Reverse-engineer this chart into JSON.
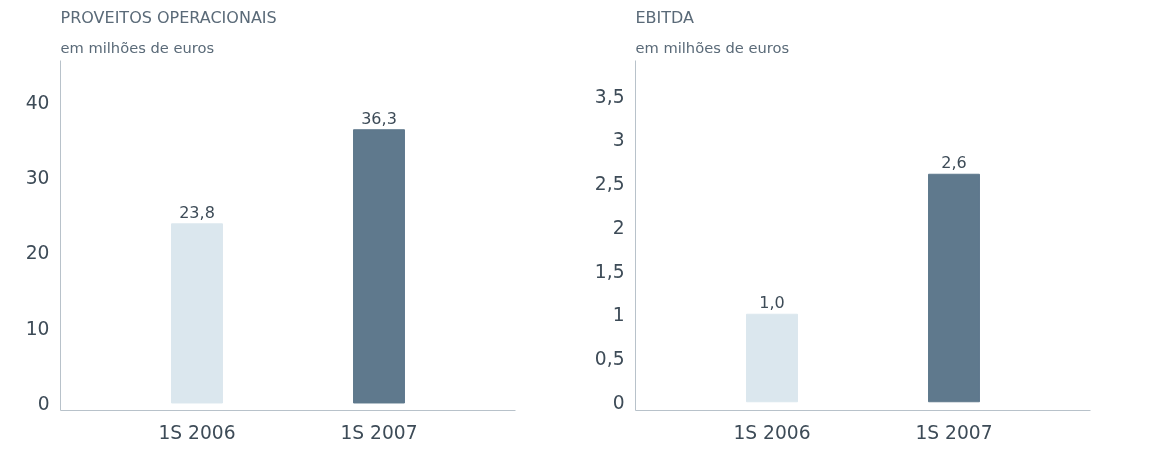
{
  "chart_data": [
    {
      "type": "bar",
      "title": "PROVEITOS OPERACIONAIS",
      "subtitle": "em milhões de euros",
      "categories": [
        "1S 2006",
        "1S 2007"
      ],
      "values": [
        23.8,
        36.3
      ],
      "colors": [
        "#dbe7ee",
        "#5f798d"
      ],
      "value_labels": [
        "23,8",
        "36,3"
      ],
      "ylim": [
        -1,
        45.5
      ],
      "yticks": [
        0,
        10,
        20,
        30,
        40
      ],
      "grid": false,
      "legend": false
    },
    {
      "type": "bar",
      "title": "EBITDA",
      "subtitle": "em milhões de euros",
      "categories": [
        "1S 2006",
        "1S 2007"
      ],
      "values": [
        1.0,
        2.6
      ],
      "colors": [
        "#dbe7ee",
        "#5f798d"
      ],
      "value_labels": [
        "1,0",
        "2,6"
      ],
      "ylim": [
        -0.1,
        3.9
      ],
      "yticks": [
        0,
        {
          "value": 0.5,
          "label": "0,5"
        },
        1,
        {
          "value": 1.5,
          "label": "1,5"
        },
        2,
        {
          "value": 2.5,
          "label": "2,5"
        },
        3,
        {
          "value": 3.5,
          "label": "3,5"
        }
      ],
      "grid": false,
      "legend": false
    }
  ]
}
